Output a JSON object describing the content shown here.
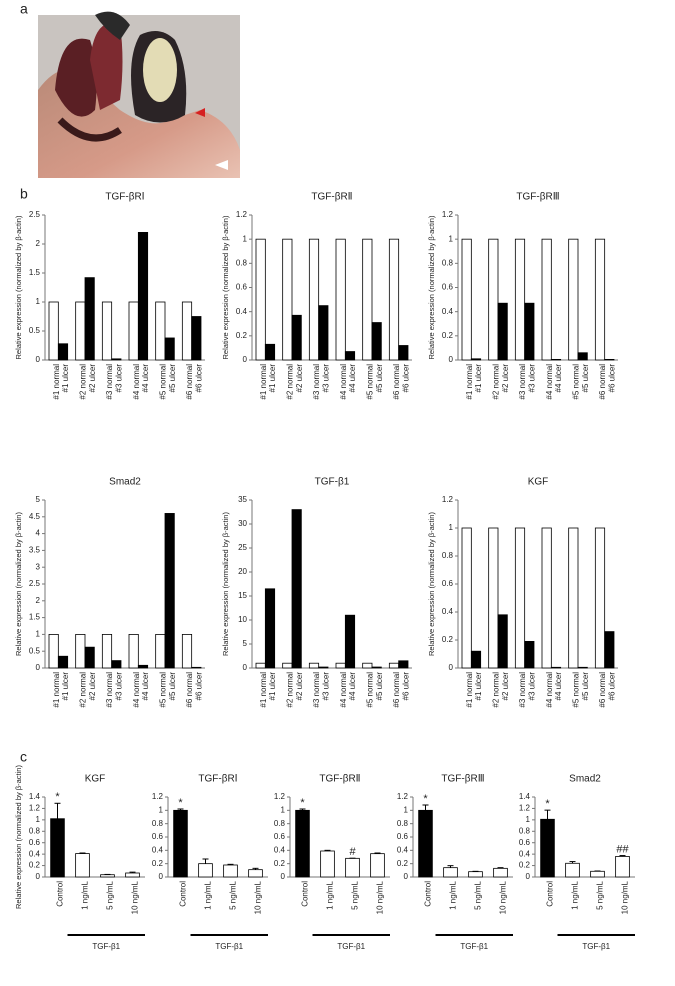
{
  "panel_labels": [
    "a",
    "b",
    "c"
  ],
  "chart_data": [
    {
      "type": "bar",
      "title": "TGF-βRⅠ",
      "ylabel": "Relative expression (normalized by β-actin)",
      "categories": [
        "#1 normal",
        "#1 ulcer",
        "#2 normal",
        "#2 ulcer",
        "#3 normal",
        "#3 ulcer",
        "#4 normal",
        "#4 ulcer",
        "#5 normal",
        "#5 ulcer",
        "#6 normal",
        "#6 ulcer"
      ],
      "values": [
        1,
        0.28,
        1,
        1.42,
        1,
        0.02,
        1,
        2.2,
        1,
        0.38,
        1,
        0.75
      ],
      "colors": [
        "#ffffff",
        "#000000",
        "#ffffff",
        "#000000",
        "#ffffff",
        "#000000",
        "#ffffff",
        "#000000",
        "#ffffff",
        "#000000",
        "#ffffff",
        "#000000"
      ],
      "ylim": [
        0,
        2.5
      ],
      "yticks": [
        0,
        0.5,
        1,
        1.5,
        2,
        2.5
      ]
    },
    {
      "type": "bar",
      "title": "TGF-βRⅡ",
      "ylabel": "Relative expression (normalized by β-actin)",
      "categories": [
        "#1 normal",
        "#1 ulcer",
        "#2 normal",
        "#2 ulcer",
        "#3 normal",
        "#3 ulcer",
        "#4 normal",
        "#4 ulcer",
        "#5 normal",
        "#5 ulcer",
        "#6 normal",
        "#6 ulcer"
      ],
      "values": [
        1,
        0.13,
        1,
        0.37,
        1,
        0.45,
        1,
        0.07,
        1,
        0.31,
        1,
        0.12
      ],
      "colors": [
        "#ffffff",
        "#000000",
        "#ffffff",
        "#000000",
        "#ffffff",
        "#000000",
        "#ffffff",
        "#000000",
        "#ffffff",
        "#000000",
        "#ffffff",
        "#000000"
      ],
      "ylim": [
        0,
        1.2
      ],
      "yticks": [
        0,
        0.2,
        0.4,
        0.6,
        0.8,
        1,
        1.2
      ]
    },
    {
      "type": "bar",
      "title": "TGF-βRⅢ",
      "ylabel": "Relative expression (normalized by β-actin)",
      "categories": [
        "#1 normal",
        "#1 ulcer",
        "#2 normal",
        "#2 ulcer",
        "#3 normal",
        "#3 ulcer",
        "#4 normal",
        "#4 ulcer",
        "#5 normal",
        "#5 ulcer",
        "#6 normal",
        "#6 ulcer"
      ],
      "values": [
        1,
        0.01,
        1,
        0.47,
        1,
        0.47,
        1,
        0.005,
        1,
        0.06,
        1,
        0.005
      ],
      "colors": [
        "#ffffff",
        "#000000",
        "#ffffff",
        "#000000",
        "#ffffff",
        "#000000",
        "#ffffff",
        "#000000",
        "#ffffff",
        "#000000",
        "#ffffff",
        "#000000"
      ],
      "ylim": [
        0,
        1.2
      ],
      "yticks": [
        0,
        0.2,
        0.4,
        0.6,
        0.8,
        1,
        1.2
      ]
    },
    {
      "type": "bar",
      "title": "Smad2",
      "ylabel": "Relative expression (normalized by β-actin)",
      "categories": [
        "#1 normal",
        "#1 ulcer",
        "#2 normal",
        "#2 ulcer",
        "#3 normal",
        "#3 ulcer",
        "#4 normal",
        "#4 ulcer",
        "#5 normal",
        "#5 ulcer",
        "#6 normal",
        "#6 ulcer"
      ],
      "values": [
        1,
        0.35,
        1,
        0.62,
        1,
        0.22,
        1,
        0.08,
        1,
        4.6,
        1,
        0.02
      ],
      "colors": [
        "#ffffff",
        "#000000",
        "#ffffff",
        "#000000",
        "#ffffff",
        "#000000",
        "#ffffff",
        "#000000",
        "#ffffff",
        "#000000",
        "#ffffff",
        "#000000"
      ],
      "ylim": [
        0,
        5
      ],
      "yticks": [
        0,
        0.5,
        1,
        1.5,
        2,
        2.5,
        3,
        3.5,
        4,
        4.5,
        5
      ]
    },
    {
      "type": "bar",
      "title": "TGF-β1",
      "ylabel": "Relative expression (normalized by β-actin)",
      "categories": [
        "#1 normal",
        "#1 ulcer",
        "#2 normal",
        "#2 ulcer",
        "#3 normal",
        "#3 ulcer",
        "#4 normal",
        "#4 ulcer",
        "#5 normal",
        "#5 ulcer",
        "#6 normal",
        "#6 ulcer"
      ],
      "values": [
        1,
        16.5,
        1,
        33,
        1,
        0.2,
        1,
        11,
        1,
        0.2,
        1,
        1.5
      ],
      "colors": [
        "#ffffff",
        "#000000",
        "#ffffff",
        "#000000",
        "#ffffff",
        "#000000",
        "#ffffff",
        "#000000",
        "#ffffff",
        "#000000",
        "#ffffff",
        "#000000"
      ],
      "ylim": [
        0,
        35
      ],
      "yticks": [
        0,
        5,
        10,
        15,
        20,
        25,
        30,
        35
      ]
    },
    {
      "type": "bar",
      "title": "KGF",
      "ylabel": "Relative expression (normalized by β-actin)",
      "categories": [
        "#1 normal",
        "#1 ulcer",
        "#2 normal",
        "#2 ulcer",
        "#3 normal",
        "#3 ulcer",
        "#4 normal",
        "#4 ulcer",
        "#5 normal",
        "#5 ulcer",
        "#6 normal",
        "#6 ulcer"
      ],
      "values": [
        1,
        0.12,
        1,
        0.38,
        1,
        0.19,
        1,
        0.005,
        1,
        0.005,
        1,
        0.26
      ],
      "colors": [
        "#ffffff",
        "#000000",
        "#ffffff",
        "#000000",
        "#ffffff",
        "#000000",
        "#ffffff",
        "#000000",
        "#ffffff",
        "#000000",
        "#ffffff",
        "#000000"
      ],
      "ylim": [
        0,
        1.2
      ],
      "yticks": [
        0,
        0.2,
        0.4,
        0.6,
        0.8,
        1,
        1.2
      ]
    },
    {
      "type": "bar",
      "title": "KGF",
      "ylabel": "Relative expression (normalized by β-actin)",
      "categories": [
        "Control",
        "1 ng/mL",
        "5 ng/mL",
        "10 ng/mL"
      ],
      "group_label": "TGF-β1",
      "values": [
        1.02,
        0.41,
        0.04,
        0.07
      ],
      "errors": [
        0.27,
        0.01,
        0.005,
        0.015
      ],
      "markers": [
        "*",
        null,
        null,
        null
      ],
      "colors": [
        "#000000",
        "#ffffff",
        "#ffffff",
        "#ffffff"
      ],
      "ylim": [
        0,
        1.4
      ],
      "yticks": [
        0,
        0.2,
        0.4,
        0.6,
        0.8,
        1,
        1.2,
        1.4
      ]
    },
    {
      "type": "bar",
      "title": "TGF-βRⅠ",
      "categories": [
        "Control",
        "1 ng/mL",
        "5 ng/mL",
        "10 ng/mL"
      ],
      "group_label": "TGF-β1",
      "values": [
        1.0,
        0.2,
        0.18,
        0.11
      ],
      "errors": [
        0.02,
        0.07,
        0.01,
        0.02
      ],
      "markers": [
        "*",
        null,
        null,
        null
      ],
      "colors": [
        "#000000",
        "#ffffff",
        "#ffffff",
        "#ffffff"
      ],
      "ylim": [
        0,
        1.2
      ],
      "yticks": [
        0,
        0.2,
        0.4,
        0.6,
        0.8,
        1,
        1.2
      ]
    },
    {
      "type": "bar",
      "title": "TGF-βRⅡ",
      "categories": [
        "Control",
        "1 ng/mL",
        "5 ng/mL",
        "10 ng/mL"
      ],
      "group_label": "TGF-β1",
      "values": [
        1.0,
        0.39,
        0.28,
        0.35
      ],
      "errors": [
        0.02,
        0.01,
        0.002,
        0.01
      ],
      "markers": [
        "*",
        null,
        "#",
        null
      ],
      "colors": [
        "#000000",
        "#ffffff",
        "#ffffff",
        "#ffffff"
      ],
      "ylim": [
        0,
        1.2
      ],
      "yticks": [
        0,
        0.2,
        0.4,
        0.6,
        0.8,
        1,
        1.2
      ]
    },
    {
      "type": "bar",
      "title": "TGF-βRⅢ",
      "categories": [
        "Control",
        "1 ng/mL",
        "5 ng/mL",
        "10 ng/mL"
      ],
      "group_label": "TGF-β1",
      "values": [
        1.0,
        0.14,
        0.08,
        0.13
      ],
      "errors": [
        0.08,
        0.03,
        0.005,
        0.01
      ],
      "markers": [
        "*",
        null,
        null,
        null
      ],
      "colors": [
        "#000000",
        "#ffffff",
        "#ffffff",
        "#ffffff"
      ],
      "ylim": [
        0,
        1.2
      ],
      "yticks": [
        0,
        0.2,
        0.4,
        0.6,
        0.8,
        1,
        1.2
      ]
    },
    {
      "type": "bar",
      "title": "Smad2",
      "categories": [
        "Control",
        "1 ng/mL",
        "5 ng/mL",
        "10 ng/mL"
      ],
      "group_label": "TGF-β1",
      "values": [
        1.01,
        0.24,
        0.1,
        0.36
      ],
      "errors": [
        0.16,
        0.03,
        0.005,
        0.015
      ],
      "markers": [
        "*",
        null,
        null,
        "##"
      ],
      "colors": [
        "#000000",
        "#ffffff",
        "#ffffff",
        "#ffffff"
      ],
      "ylim": [
        0,
        1.4
      ],
      "yticks": [
        0,
        0.2,
        0.4,
        0.6,
        0.8,
        1,
        1.2,
        1.4
      ]
    }
  ]
}
